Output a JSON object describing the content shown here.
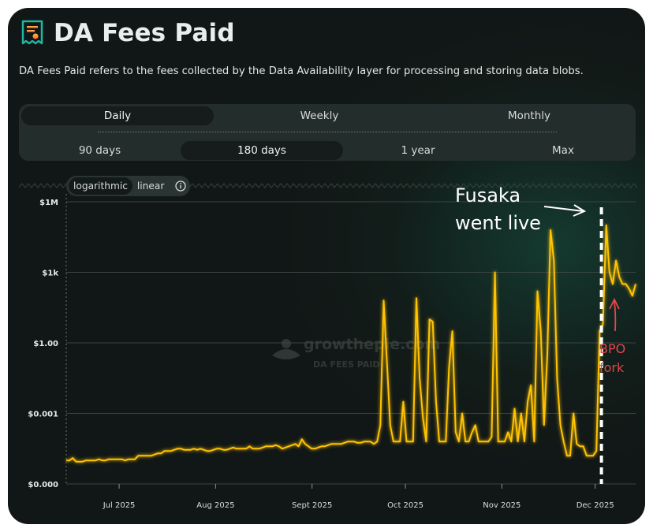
{
  "header": {
    "title": "DA Fees Paid",
    "description": "DA Fees Paid refers to the fees collected by the Data Availability layer for processing and storing data blobs."
  },
  "granularity_tabs": [
    {
      "label": "Daily",
      "active": true
    },
    {
      "label": "Weekly",
      "active": false
    },
    {
      "label": "Monthly",
      "active": false
    }
  ],
  "range_tabs": [
    {
      "label": "90 days",
      "active": false
    },
    {
      "label": "180 days",
      "active": true
    },
    {
      "label": "1 year",
      "active": false
    },
    {
      "label": "Max",
      "active": false
    }
  ],
  "scale_toggle": {
    "logarithmic": "logarithmic",
    "linear": "linear",
    "active": "logarithmic"
  },
  "watermark": {
    "brand": "growthepie.com",
    "label": "DA FEES PAID"
  },
  "annotations": {
    "fusaka_line1": "Fusaka",
    "fusaka_line2": "went live",
    "bpo_line1": "BPO",
    "bpo_line2": "fork"
  },
  "colors": {
    "line": "#ffc300",
    "annotation_white": "#ffffff",
    "annotation_red": "#e2474a",
    "background": "#111816"
  },
  "chart_data": {
    "type": "line",
    "title": "DA Fees Paid",
    "y_scale": "log",
    "y_ticks": [
      "$0.000",
      "$0.001",
      "$1.00",
      "$1k",
      "$1M"
    ],
    "x_ticks": [
      "Jul 2025",
      "Aug 2025",
      "Sept 2025",
      "Oct 2025",
      "Nov 2025",
      "Dec 2025"
    ],
    "x_range": [
      "2025-06-14",
      "2025-12-14"
    ],
    "y_range_log10": [
      -6,
      6
    ],
    "events": [
      {
        "label": "Fusaka went live",
        "date": "2025-12-03"
      },
      {
        "label": "BPO fork",
        "date": "2025-12-09"
      }
    ],
    "series": [
      {
        "values_log10": [
          -5.0,
          -5.0,
          -4.9,
          -5.05,
          -5.05,
          -5.05,
          -5.0,
          -5.0,
          -5.0,
          -5.0,
          -4.95,
          -5.0,
          -5.0,
          -4.95,
          -4.95,
          -4.95,
          -4.95,
          -4.95,
          -5.0,
          -4.95,
          -4.95,
          -4.95,
          -4.8,
          -4.8,
          -4.8,
          -4.8,
          -4.8,
          -4.75,
          -4.7,
          -4.7,
          -4.6,
          -4.6,
          -4.6,
          -4.55,
          -4.5,
          -4.5,
          -4.55,
          -4.55,
          -4.55,
          -4.5,
          -4.55,
          -4.5,
          -4.55,
          -4.6,
          -4.6,
          -4.55,
          -4.5,
          -4.5,
          -4.55,
          -4.55,
          -4.5,
          -4.45,
          -4.5,
          -4.5,
          -4.5,
          -4.5,
          -4.4,
          -4.5,
          -4.5,
          -4.5,
          -4.45,
          -4.4,
          -4.4,
          -4.4,
          -4.35,
          -4.4,
          -4.5,
          -4.45,
          -4.4,
          -4.35,
          -4.3,
          -4.4,
          -4.1,
          -4.3,
          -4.4,
          -4.5,
          -4.5,
          -4.45,
          -4.4,
          -4.4,
          -4.35,
          -4.3,
          -4.3,
          -4.3,
          -4.3,
          -4.25,
          -4.2,
          -4.2,
          -4.2,
          -4.25,
          -4.25,
          -4.2,
          -4.2,
          -4.2,
          -4.3,
          -4.2,
          -3.5,
          1.8,
          -0.8,
          -3.5,
          -4.2,
          -4.2,
          -4.2,
          -2.5,
          -4.2,
          -4.2,
          -4.2,
          1.9,
          -1.5,
          -3.2,
          -4.2,
          1.0,
          0.9,
          -2.5,
          -4.2,
          -4.2,
          -4.2,
          -1.0,
          0.5,
          -3.8,
          -4.2,
          -3.0,
          -4.2,
          -4.2,
          -3.8,
          -3.5,
          -4.2,
          -4.2,
          -4.2,
          -4.2,
          -4.0,
          3.0,
          -4.2,
          -4.2,
          -4.2,
          -3.8,
          -4.2,
          -2.8,
          -4.2,
          -3.0,
          -4.2,
          -2.5,
          -1.8,
          -4.2,
          2.2,
          0.5,
          -3.5,
          -0.5,
          4.8,
          3.5,
          -1.5,
          -3.5,
          -4.2,
          -4.8,
          -4.8,
          -3.0,
          -4.3,
          -4.4,
          -4.4,
          -4.8,
          -4.8,
          -4.8,
          -4.6,
          0.5,
          0.8,
          5.0,
          3.0,
          2.5,
          3.5,
          2.8,
          2.5,
          2.5,
          2.3,
          2.0,
          2.5
        ]
      }
    ]
  }
}
